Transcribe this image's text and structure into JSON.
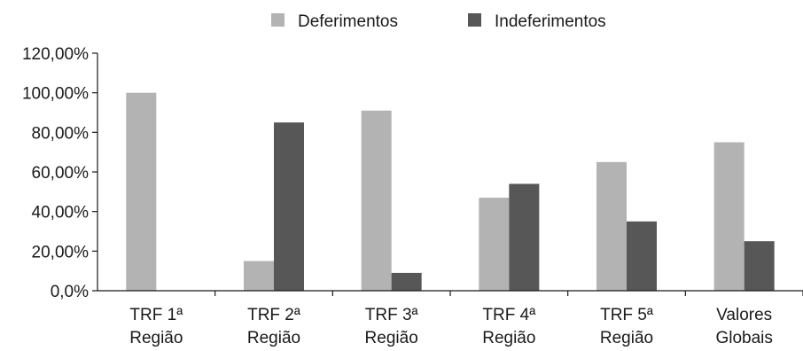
{
  "chart_data": {
    "type": "bar",
    "categories": [
      [
        "TRF 1ª",
        "Região"
      ],
      [
        "TRF 2ª",
        "Região"
      ],
      [
        "TRF 3ª",
        "Região"
      ],
      [
        "TRF 4ª",
        "Região"
      ],
      [
        "TRF 5ª",
        "Região"
      ],
      [
        "Valores",
        "Globais"
      ]
    ],
    "series": [
      {
        "name": "Deferimentos",
        "color": "#b3b3b3",
        "values": [
          100,
          15,
          91,
          47,
          65,
          75
        ]
      },
      {
        "name": "Indeferimentos",
        "color": "#575757",
        "values": [
          0,
          85,
          9,
          54,
          35,
          25
        ]
      }
    ],
    "yticks": [
      "0,0%",
      "20,00%",
      "40,00%",
      "60,00%",
      "80,00%",
      "100,00%",
      "120,00%"
    ],
    "ylim": [
      0,
      120
    ],
    "legend_position": "top",
    "grid": false
  }
}
